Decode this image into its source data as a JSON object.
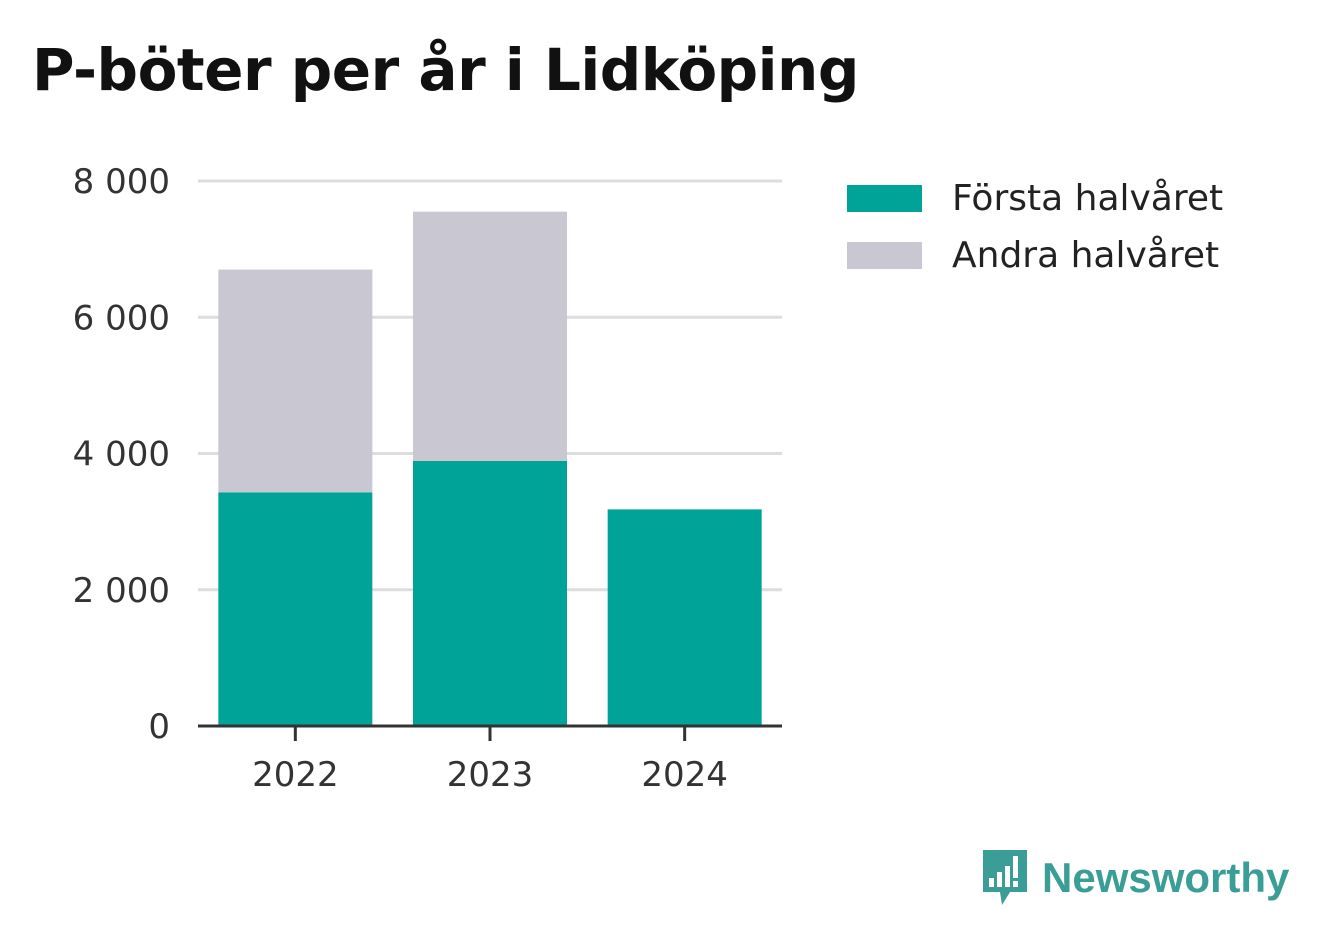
{
  "title": "P-böter per år i Lidköping",
  "brand": {
    "name": "Newsworthy",
    "icon": "newsworthy-logo-icon",
    "color": "#3a9e96"
  },
  "chart_data": {
    "type": "bar",
    "stacked": true,
    "categories": [
      "2022",
      "2023",
      "2024"
    ],
    "series": [
      {
        "name": "Första halvåret",
        "color": "#00a398",
        "values": [
          3430,
          3890,
          3180
        ]
      },
      {
        "name": "Andra halvåret",
        "color": "#c8c7d2",
        "values": [
          3270,
          3660,
          null
        ]
      }
    ],
    "ylim": [
      0,
      8000
    ],
    "yticks": [
      0,
      2000,
      4000,
      6000,
      8000
    ],
    "ytick_labels": [
      "0",
      "2 000",
      "4 000",
      "6 000",
      "8 000"
    ],
    "grid": true,
    "legend": "top-right",
    "xlabel": "",
    "ylabel": ""
  }
}
